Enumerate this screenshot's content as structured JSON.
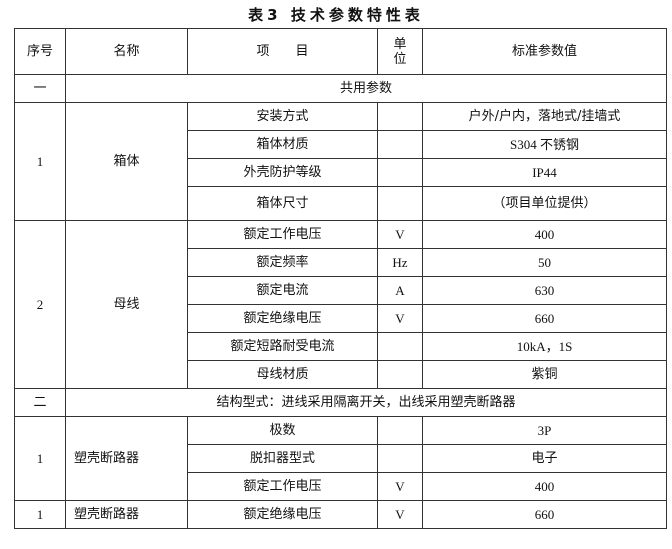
{
  "title": "表3  技术参数特性表",
  "headers": {
    "seq": "序号",
    "name": "名称",
    "item": "项　　目",
    "unit": "单\n位",
    "value": "标准参数值"
  },
  "section1": {
    "seq": "一",
    "label": "共用参数"
  },
  "group1": {
    "seq": "1",
    "name": "箱体",
    "rows": [
      {
        "item": "安装方式",
        "unit": "",
        "value": "户外/户内，落地式/挂墙式"
      },
      {
        "item": "箱体材质",
        "unit": "",
        "value": "S304 不锈钢"
      },
      {
        "item": "外壳防护等级",
        "unit": "",
        "value": "IP44"
      },
      {
        "item": "箱体尺寸",
        "unit": "",
        "value": "（项目单位提供）"
      }
    ]
  },
  "group2": {
    "seq": "2",
    "name": "母线",
    "rows": [
      {
        "item": "额定工作电压",
        "unit": "V",
        "value": "400"
      },
      {
        "item": "额定频率",
        "unit": "Hz",
        "value": "50"
      },
      {
        "item": "额定电流",
        "unit": "A",
        "value": "630"
      },
      {
        "item": "额定绝缘电压",
        "unit": "V",
        "value": "660"
      },
      {
        "item": "额定短路耐受电流",
        "unit": "",
        "value": "10kA，1S"
      },
      {
        "item": "母线材质",
        "unit": "",
        "value": "紫铜"
      }
    ]
  },
  "section2": {
    "seq": "二",
    "label": "结构型式：进线采用隔离开关，出线采用塑壳断路器"
  },
  "group3": {
    "seq": "1",
    "name": "塑壳断路器",
    "rows": [
      {
        "item": "极数",
        "unit": "",
        "value": "3P"
      },
      {
        "item": "脱扣器型式",
        "unit": "",
        "value": "电子"
      },
      {
        "item": "额定工作电压",
        "unit": "V",
        "value": "400"
      }
    ]
  },
  "group4": {
    "seq": "1",
    "name": "塑壳断路器",
    "rows": [
      {
        "item": "额定绝缘电压",
        "unit": "V",
        "value": "660"
      }
    ]
  }
}
